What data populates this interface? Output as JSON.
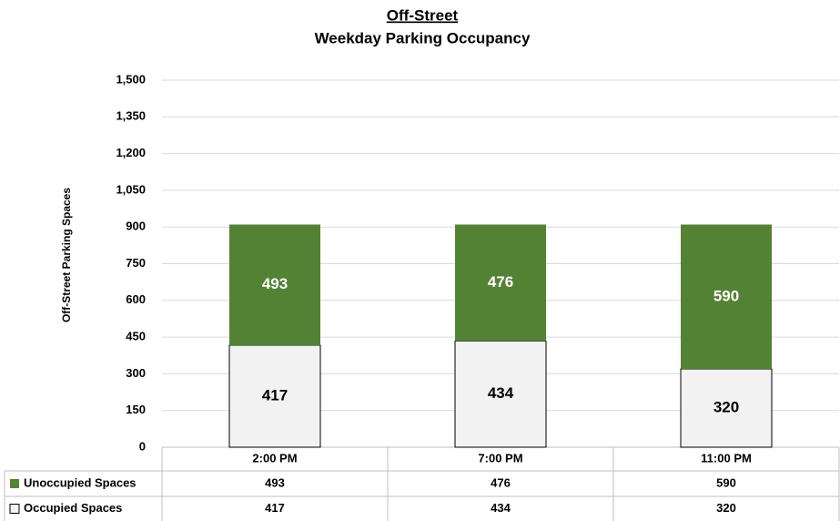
{
  "chart_data": {
    "type": "stacked_bar",
    "title": "Off-Street",
    "subtitle": "Weekday Parking Occupancy",
    "y_label": "Off-Street Parking Spaces",
    "categories": [
      "2:00 PM",
      "7:00 PM",
      "11:00 PM"
    ],
    "series": [
      {
        "name": "Occupied Spaces",
        "color": "#f2f2f2",
        "values": [
          417,
          434,
          320
        ]
      },
      {
        "name": "Unoccupied Spaces",
        "color": "#548235",
        "values": [
          493,
          476,
          590
        ]
      }
    ],
    "ylim": [
      0,
      1500
    ],
    "yticks": [
      0,
      150,
      300,
      450,
      600,
      750,
      900,
      {
        "value": 1050,
        "label": "1,050"
      },
      {
        "value": 1200,
        "label": "1,200"
      },
      {
        "value": 1350,
        "label": "1,350"
      },
      {
        "value": 1500,
        "label": "1,500"
      }
    ],
    "grid": true
  }
}
